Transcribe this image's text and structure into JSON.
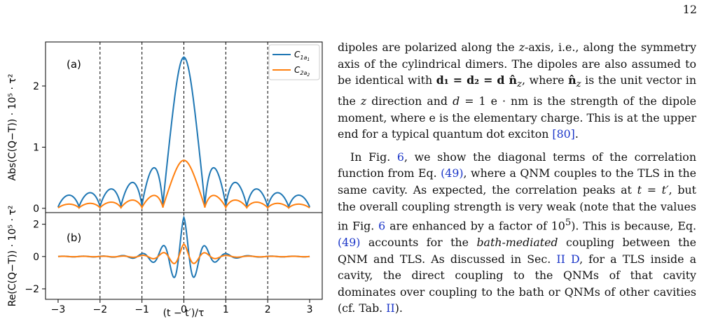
{
  "page": {
    "number": "12"
  },
  "figure": {
    "xlabel": "(t − t′)/τ",
    "xticks": [
      "−3",
      "−2",
      "−1",
      "0",
      "1",
      "2",
      "3"
    ],
    "colors": {
      "c1": "#1f77b4",
      "c2": "#ff7f0e"
    },
    "chart_data": [
      {
        "type": "line",
        "panel_label": "(a)",
        "ylabel": "Abs(C(Q−T)) · 10⁵ · τ²",
        "yticks": [
          "0",
          "1",
          "2"
        ],
        "xlim": [
          -3.3,
          3.3
        ],
        "ylim": [
          -0.07,
          2.72
        ],
        "vlines": [
          -2,
          -1,
          0,
          1,
          2
        ],
        "legend_position": "top-right",
        "legend": [
          "C1a1",
          "C2a2"
        ],
        "series": [
          {
            "name": "C1a1",
            "color": "#1f77b4",
            "peak": 2.42,
            "envelope": "decaying oscillation",
            "range_x": [
              -3,
              3
            ]
          },
          {
            "name": "C2a2",
            "color": "#ff7f0e",
            "peak": 0.77,
            "envelope": "decaying oscillation",
            "range_x": [
              -3,
              3
            ]
          }
        ]
      },
      {
        "type": "line",
        "panel_label": "(b)",
        "ylabel": "Re(C(Q−T)) · 10⁵ · τ²",
        "yticks": [
          "−2",
          "0",
          "2"
        ],
        "xlim": [
          -3.3,
          3.3
        ],
        "ylim": [
          -2.65,
          2.72
        ],
        "vlines": [
          -2,
          -1,
          0,
          1,
          2
        ],
        "series": [
          {
            "name": "C1a1",
            "color": "#1f77b4",
            "peak": 2.42,
            "min": -2.42,
            "range_x": [
              -3,
              3
            ]
          },
          {
            "name": "C2a2",
            "color": "#ff7f0e",
            "peak": 0.77,
            "min": -0.75,
            "range_x": [
              -3,
              3
            ]
          }
        ]
      }
    ]
  },
  "text": {
    "p1": {
      "s1": "dipoles are polarized along the ",
      "s2": "z",
      "s3": "-axis, i.e., along the symmetry axis of the cylindrical dimers. The dipoles are also assumed to be identical with ",
      "s4": "d₁ = d₂ = d n̂",
      "s5": "z",
      "s6": ", where ",
      "s7": "n̂",
      "s8": "z",
      "s9": " is the unit vector in the ",
      "s10": "z",
      "s11": " direction and ",
      "s12": "d",
      "s13": " = 1 e · nm is the strength of the dipole moment, where e is the elementary charge. This is at the upper end for a typical quantum dot exciton ",
      "s14": "[80]",
      "s15": "."
    },
    "p2": {
      "s1": "In Fig. ",
      "s2": "6",
      "s3": ", we show the diagonal terms of the correlation function from Eq. ",
      "s4": "(49)",
      "s5": ", where a QNM couples to the TLS in the same cavity. As expected, the correlation peaks at ",
      "s6": "t = t′",
      "s7": ", but the overall coupling strength is very weak (note that the values in Fig. ",
      "s8": "6",
      "s9": " are enhanced by a factor of 10",
      "s10": "5",
      "s11": "). This is because, Eq. ",
      "s12": "(49)",
      "s13": " accounts for the ",
      "s14": "bath-mediated",
      "s15": " coupling between the QNM and TLS. As discussed in Sec. ",
      "s16": "II D",
      "s17": ", for a TLS inside a cavity, the direct coupling to the QNMs of that cavity dominates over coupling to the bath or QNMs of other cavities (cf. Tab. ",
      "s18": "II",
      "s19": ")."
    }
  }
}
